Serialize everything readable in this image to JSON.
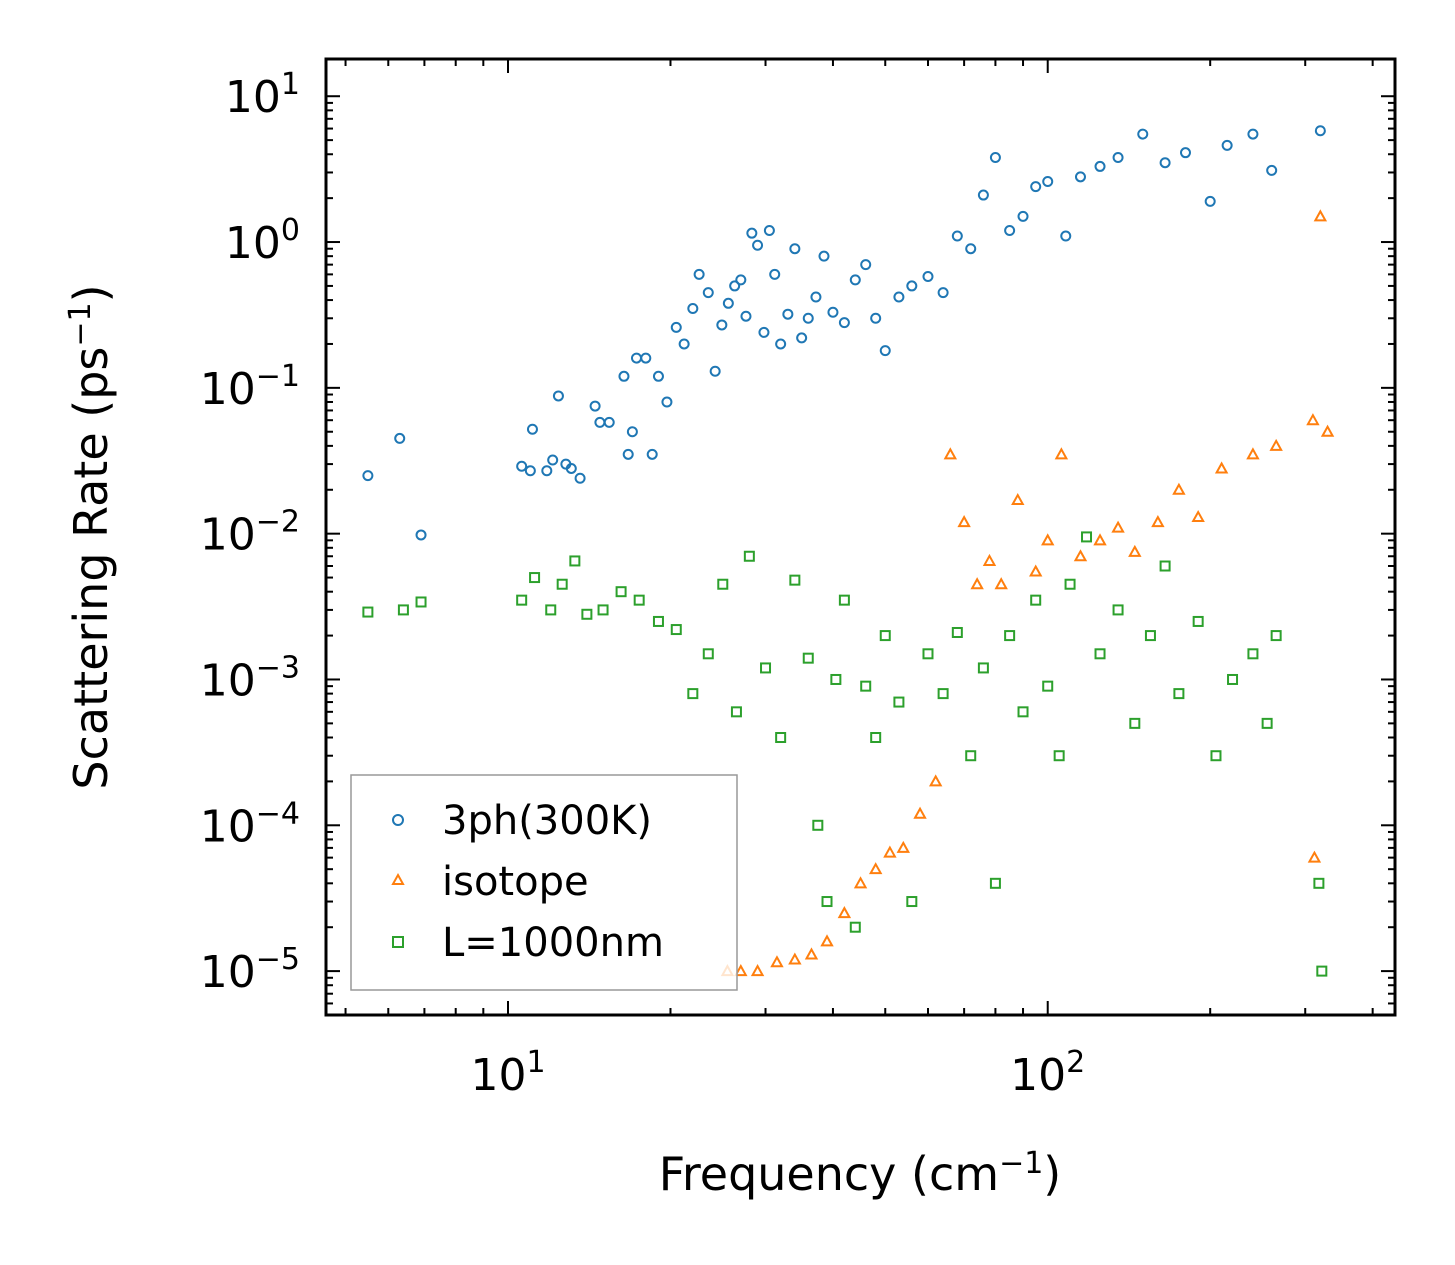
{
  "chart_data": {
    "type": "scatter",
    "xscale": "log",
    "yscale": "log",
    "xlim": [
      4.6,
      440
    ],
    "ylim": [
      5e-06,
      18
    ],
    "xlabel": {
      "prefix": "Frequency (cm",
      "sup": "−1",
      "suffix": ")"
    },
    "ylabel": {
      "prefix": "Scattering Rate (ps",
      "sup": "−1",
      "suffix": ")"
    },
    "x_major_ticks": [
      {
        "value": 10,
        "base": "10",
        "exp": "1"
      },
      {
        "value": 100,
        "base": "10",
        "exp": "2"
      }
    ],
    "y_major_ticks": [
      {
        "value": 10,
        "base": "10",
        "exp": "1"
      },
      {
        "value": 1,
        "base": "10",
        "exp": "0"
      },
      {
        "value": 0.1,
        "base": "10",
        "exp": "−1"
      },
      {
        "value": 0.01,
        "base": "10",
        "exp": "−2"
      },
      {
        "value": 0.001,
        "base": "10",
        "exp": "−3"
      },
      {
        "value": 0.0001,
        "base": "10",
        "exp": "−4"
      },
      {
        "value": 1e-05,
        "base": "10",
        "exp": "−5"
      }
    ],
    "legend_position": "lower-left",
    "series": [
      {
        "name": "3ph(300K)",
        "marker": "circle",
        "color": "#1f77b4",
        "points": [
          [
            5.5,
            0.025
          ],
          [
            6.3,
            0.045
          ],
          [
            6.9,
            0.0098
          ],
          [
            10.6,
            0.029
          ],
          [
            11.1,
            0.052
          ],
          [
            11.0,
            0.027
          ],
          [
            11.8,
            0.027
          ],
          [
            12.1,
            0.032
          ],
          [
            12.4,
            0.088
          ],
          [
            12.8,
            0.03
          ],
          [
            13.1,
            0.028
          ],
          [
            13.6,
            0.024
          ],
          [
            14.5,
            0.075
          ],
          [
            14.8,
            0.058
          ],
          [
            15.4,
            0.058
          ],
          [
            16.4,
            0.12
          ],
          [
            16.7,
            0.035
          ],
          [
            17.0,
            0.05
          ],
          [
            17.3,
            0.16
          ],
          [
            18.0,
            0.16
          ],
          [
            18.5,
            0.035
          ],
          [
            19.0,
            0.12
          ],
          [
            19.7,
            0.08
          ],
          [
            20.5,
            0.26
          ],
          [
            21.2,
            0.2
          ],
          [
            22.0,
            0.35
          ],
          [
            22.6,
            0.6
          ],
          [
            23.5,
            0.45
          ],
          [
            24.2,
            0.13
          ],
          [
            24.9,
            0.27
          ],
          [
            25.6,
            0.38
          ],
          [
            26.3,
            0.5
          ],
          [
            27.0,
            0.55
          ],
          [
            27.6,
            0.31
          ],
          [
            28.3,
            1.15
          ],
          [
            29.0,
            0.95
          ],
          [
            29.8,
            0.24
          ],
          [
            30.5,
            1.2
          ],
          [
            31.2,
            0.6
          ],
          [
            32.0,
            0.2
          ],
          [
            33.0,
            0.32
          ],
          [
            34.0,
            0.9
          ],
          [
            35.0,
            0.22
          ],
          [
            36.0,
            0.3
          ],
          [
            37.2,
            0.42
          ],
          [
            38.5,
            0.8
          ],
          [
            40.0,
            0.33
          ],
          [
            42.0,
            0.28
          ],
          [
            44.0,
            0.55
          ],
          [
            46.0,
            0.7
          ],
          [
            48.0,
            0.3
          ],
          [
            50.0,
            0.18
          ],
          [
            53.0,
            0.42
          ],
          [
            56.0,
            0.5
          ],
          [
            60.0,
            0.58
          ],
          [
            64.0,
            0.45
          ],
          [
            68.0,
            1.1
          ],
          [
            72.0,
            0.9
          ],
          [
            76.0,
            2.1
          ],
          [
            80.0,
            3.8
          ],
          [
            85.0,
            1.2
          ],
          [
            90.0,
            1.5
          ],
          [
            95.0,
            2.4
          ],
          [
            100.0,
            2.6
          ],
          [
            108.0,
            1.1
          ],
          [
            115.0,
            2.8
          ],
          [
            125.0,
            3.3
          ],
          [
            135.0,
            3.8
          ],
          [
            150.0,
            5.5
          ],
          [
            165.0,
            3.5
          ],
          [
            180.0,
            4.1
          ],
          [
            200.0,
            1.9
          ],
          [
            215.0,
            4.6
          ],
          [
            240.0,
            5.5
          ],
          [
            260.0,
            3.1
          ],
          [
            320.0,
            5.8
          ]
        ]
      },
      {
        "name": "isotope",
        "marker": "triangle",
        "color": "#ff7f0e",
        "points": [
          [
            25.5,
            1e-05
          ],
          [
            27.0,
            1e-05
          ],
          [
            29.0,
            1e-05
          ],
          [
            31.5,
            1.15e-05
          ],
          [
            34.0,
            1.2e-05
          ],
          [
            36.5,
            1.3e-05
          ],
          [
            39.0,
            1.6e-05
          ],
          [
            42.0,
            2.5e-05
          ],
          [
            45.0,
            4e-05
          ],
          [
            48.0,
            5e-05
          ],
          [
            51.0,
            6.5e-05
          ],
          [
            54.0,
            7e-05
          ],
          [
            58.0,
            0.00012
          ],
          [
            62.0,
            0.0002
          ],
          [
            66.0,
            0.035
          ],
          [
            70.0,
            0.012
          ],
          [
            74.0,
            0.0045
          ],
          [
            78.0,
            0.0065
          ],
          [
            82.0,
            0.0045
          ],
          [
            88.0,
            0.017
          ],
          [
            95.0,
            0.0055
          ],
          [
            100.0,
            0.009
          ],
          [
            106.0,
            0.035
          ],
          [
            115.0,
            0.007
          ],
          [
            125.0,
            0.009
          ],
          [
            135.0,
            0.011
          ],
          [
            145.0,
            0.0075
          ],
          [
            160.0,
            0.012
          ],
          [
            175.0,
            0.02
          ],
          [
            190.0,
            0.013
          ],
          [
            210.0,
            0.028
          ],
          [
            240.0,
            0.035
          ],
          [
            265.0,
            0.04
          ],
          [
            310.0,
            0.06
          ],
          [
            312.0,
            6e-05
          ],
          [
            320.0,
            1.5
          ],
          [
            330.0,
            0.05
          ]
        ]
      },
      {
        "name": "L=1000nm",
        "marker": "square",
        "color": "#2ca02c",
        "points": [
          [
            5.5,
            0.0029
          ],
          [
            6.4,
            0.003
          ],
          [
            6.9,
            0.0034
          ],
          [
            10.6,
            0.0035
          ],
          [
            11.2,
            0.005
          ],
          [
            12.0,
            0.003
          ],
          [
            12.6,
            0.0045
          ],
          [
            13.3,
            0.0065
          ],
          [
            14.0,
            0.0028
          ],
          [
            15.0,
            0.003
          ],
          [
            16.2,
            0.004
          ],
          [
            17.5,
            0.0035
          ],
          [
            19.0,
            0.0025
          ],
          [
            20.5,
            0.0022
          ],
          [
            22.0,
            0.0008
          ],
          [
            23.5,
            0.0015
          ],
          [
            25.0,
            0.0045
          ],
          [
            26.5,
            0.0006
          ],
          [
            28.0,
            0.007
          ],
          [
            30.0,
            0.0012
          ],
          [
            32.0,
            0.0004
          ],
          [
            34.0,
            0.0048
          ],
          [
            36.0,
            0.0014
          ],
          [
            37.5,
            0.0001
          ],
          [
            39.0,
            3e-05
          ],
          [
            40.5,
            0.001
          ],
          [
            42.0,
            0.0035
          ],
          [
            44.0,
            2e-05
          ],
          [
            46.0,
            0.0009
          ],
          [
            48.0,
            0.0004
          ],
          [
            50.0,
            0.002
          ],
          [
            53.0,
            0.0007
          ],
          [
            56.0,
            3e-05
          ],
          [
            60.0,
            0.0015
          ],
          [
            64.0,
            0.0008
          ],
          [
            68.0,
            0.0021
          ],
          [
            72.0,
            0.0003
          ],
          [
            76.0,
            0.0012
          ],
          [
            80.0,
            4e-05
          ],
          [
            85.0,
            0.002
          ],
          [
            90.0,
            0.0006
          ],
          [
            95.0,
            0.0035
          ],
          [
            100.0,
            0.0009
          ],
          [
            105.0,
            0.0003
          ],
          [
            110.0,
            0.0045
          ],
          [
            118.0,
            0.0095
          ],
          [
            125.0,
            0.0015
          ],
          [
            135.0,
            0.003
          ],
          [
            145.0,
            0.0005
          ],
          [
            155.0,
            0.002
          ],
          [
            165.0,
            0.006
          ],
          [
            175.0,
            0.0008
          ],
          [
            190.0,
            0.0025
          ],
          [
            205.0,
            0.0003
          ],
          [
            220.0,
            0.001
          ],
          [
            240.0,
            0.0015
          ],
          [
            255.0,
            0.0005
          ],
          [
            265.0,
            0.002
          ],
          [
            318.0,
            4e-05
          ],
          [
            322.0,
            1e-05
          ]
        ]
      }
    ]
  }
}
